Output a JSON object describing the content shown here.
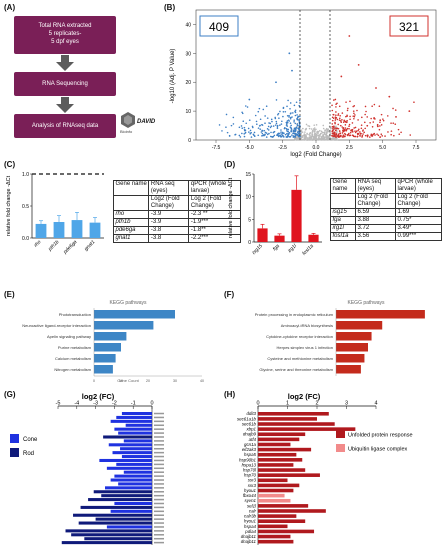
{
  "panels": {
    "a": "(A)",
    "b": "(B)",
    "c": "(C)",
    "d": "(D)",
    "e": "(E)",
    "f": "(F)",
    "g": "(G)",
    "h": "(H)"
  },
  "workflow": {
    "step1_line1": "Total RNA extracted",
    "step1_line2": "5 replicates-",
    "step1_line3": "5 dpf eyes",
    "step2": "RNA Sequencing",
    "step3": "Analysis of RNAseq data",
    "david": "DAVID",
    "logo_text": "Bioinfo",
    "colors": {
      "box": "#7a1f57",
      "arrow": "#5b5b5b"
    }
  },
  "volcano": {
    "down_count": "409",
    "up_count": "321",
    "ylabel": "-log10 (Adj. P Value)",
    "xlabel": "log2 (Fold Change)",
    "xticks": [
      "-7.5",
      "-5.0",
      "-2.5",
      "0.0",
      "2.5",
      "5.0",
      "7.5"
    ],
    "yticks": [
      "0",
      "10",
      "20",
      "30",
      "40"
    ],
    "colors": {
      "down": "#3d7fc4",
      "up": "#d0312d",
      "ns": "#bbbbbb"
    }
  },
  "panel_c": {
    "ylabel": "relative fold change\n-ΔCt",
    "yticks": [
      "0.0",
      "0.5",
      "1.0"
    ],
    "genes": [
      "rho",
      "pth1b",
      "pde6ga",
      "gnat1"
    ],
    "values": [
      0.22,
      0.25,
      0.28,
      0.24
    ],
    "errors": [
      0.05,
      0.1,
      0.12,
      0.08
    ],
    "table": {
      "head": [
        "Gene name",
        "RNA seq (eyes)",
        "qPCR (whole larvae)"
      ],
      "sub": [
        "",
        "Log2 (Fold Change)",
        "Log 2 (Fold Change)"
      ],
      "rows": [
        [
          "rho",
          "-3.9",
          "-2.3 **"
        ],
        [
          "pth1b",
          "-3.9",
          "-1.9***"
        ],
        [
          "pde6ga",
          "-3.8",
          "-1.8**"
        ],
        [
          "gnat1",
          "-3.8",
          "-2.2***"
        ]
      ]
    }
  },
  "panel_d": {
    "ylabel": "relative fold change\n-ΔCt",
    "yticks": [
      "0",
      "5",
      "10",
      "15"
    ],
    "genes": [
      "isg15",
      "fga",
      "irg1l",
      "fosl1a"
    ],
    "values": [
      3.0,
      1.4,
      11.5,
      1.6
    ],
    "errors": [
      0.9,
      0.4,
      3.1,
      0.3
    ],
    "table": {
      "head": [
        "Gene name",
        "RNA seq (eyes)",
        "qPCR (whole larvae)"
      ],
      "sub": [
        "",
        "Log 2 (Fold Change)",
        "Log 2 (Fold Change)"
      ],
      "rows": [
        [
          "isg15",
          "6.59",
          "1.69"
        ],
        [
          "fga",
          "3.88",
          "0.75*"
        ],
        [
          "irg1l",
          "3.72",
          "3.49*"
        ],
        [
          "fosl1a",
          "3.56",
          "0.99***"
        ]
      ]
    }
  },
  "panel_e": {
    "title": "KEGG pathways",
    "xlabel": "Gene Count",
    "xticks": [
      "0",
      "10",
      "20",
      "30",
      "40"
    ],
    "labels": [
      "Phototransduction",
      "Neuroactive ligand-receptor interaction",
      "Apelin signaling pathway",
      "Purine metabolism",
      "Calcium metabolism",
      "Nitrogen metabolism"
    ],
    "values": [
      30,
      22,
      12,
      10,
      8,
      7
    ],
    "color": "#3d86c6"
  },
  "panel_f": {
    "title": "KEGG pathways",
    "labels": [
      "Protein processing in endoplasmic reticulum",
      "Aminoacyl-tRNA biosynthesis",
      "Cytokine-cytokine receptor interaction",
      "Herpes simplex virus 1 infection",
      "Cysteine and methionine metabolism",
      "Glycine, serine and threonine metabolism"
    ],
    "values": [
      25,
      13,
      10,
      9,
      8,
      7
    ],
    "color": "#c42b1c"
  },
  "panel_g": {
    "title": "log2 (FC)",
    "xticks": [
      "-5",
      "-4",
      "-3",
      "-2",
      "-1",
      "0"
    ],
    "legend": [
      {
        "name": "Cone",
        "color": "#1f32e0"
      },
      {
        "name": "Rod",
        "color": "#0f1a7a"
      }
    ],
    "values": [
      -1.6,
      -1.9,
      -2.2,
      -1.4,
      -2.0,
      -1.8,
      -2.6,
      -1.5,
      -2.3,
      -1.7,
      -2.1,
      -1.6,
      -2.8,
      -1.9,
      -2.4,
      -1.5,
      -2.0,
      -2.2,
      -1.8,
      -2.5,
      -3.1,
      -2.7,
      -3.4,
      -2.0,
      -3.8,
      -2.2,
      -4.2,
      -3.0,
      -3.9,
      -2.4,
      -4.6,
      -4.3,
      -3.6,
      -4.8
    ],
    "colors": [
      "c",
      "c",
      "c",
      "c",
      "c",
      "c",
      "r",
      "c",
      "c",
      "c",
      "c",
      "c",
      "c",
      "c",
      "c",
      "c",
      "c",
      "c",
      "c",
      "c",
      "r",
      "r",
      "r",
      "c",
      "r",
      "c",
      "r",
      "r",
      "r",
      "c",
      "r",
      "r",
      "r",
      "r"
    ]
  },
  "panel_h": {
    "title": "log2 (FC)",
    "xticks": [
      "0",
      "1",
      "2",
      "3",
      "4"
    ],
    "labels": [
      "ddit3",
      "sec61a1b",
      "sec61b",
      "xbp1",
      "dnajb9",
      "atf4",
      "gcn1a",
      "eif2ak3",
      "hspa5",
      "hsp90b1",
      "hspa13",
      "hsp70l",
      "hsp70",
      "ssr3",
      "ssr3",
      "hyou1",
      "fbxo44",
      "syvn1",
      "sel1l",
      "calr",
      "calr3b",
      "hyou1",
      "hspa4",
      "pdia4",
      "dnajb11",
      "dnajb11"
    ],
    "values": [
      2.4,
      2.0,
      2.6,
      3.3,
      1.6,
      1.4,
      1.1,
      1.8,
      1.3,
      1.5,
      1.2,
      1.6,
      2.1,
      1.0,
      1.4,
      1.2,
      0.9,
      1.1,
      1.7,
      2.3,
      1.3,
      1.6,
      1.0,
      1.9,
      1.1,
      1.2
    ],
    "categories": [
      "u",
      "u",
      "u",
      "u",
      "u",
      "u",
      "u",
      "u",
      "u",
      "u",
      "u",
      "u",
      "u",
      "u",
      "u",
      "u",
      "b",
      "b",
      "u",
      "u",
      "u",
      "u",
      "u",
      "u",
      "u",
      "u"
    ],
    "legend": [
      {
        "name": "Unfolded protein response",
        "color": "#b0191e"
      },
      {
        "name": "Ubiquitin ligase complex",
        "color": "#f28b8b"
      }
    ]
  }
}
